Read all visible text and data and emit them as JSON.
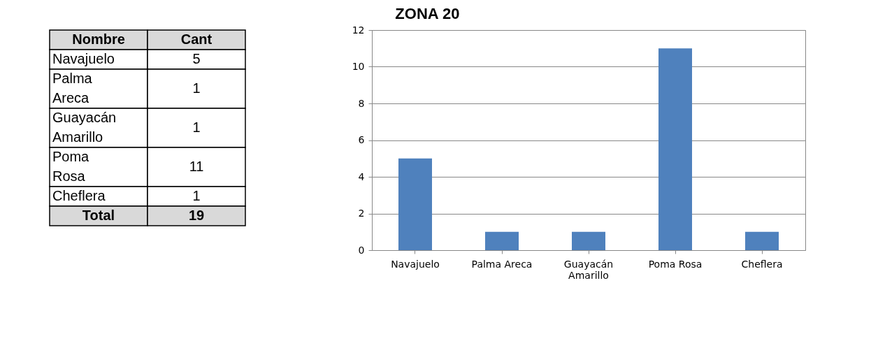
{
  "chart_data": [
    {
      "type": "other",
      "categories": [
        "Navajuelo",
        "Palma Areca",
        "Guayacán Amarillo",
        "Poma Rosa",
        "Cheflera"
      ],
      "values": [
        5,
        1,
        1,
        11,
        1
      ],
      "data_labels": true,
      "annotations": [
        "Nombre",
        "Cant",
        "Total",
        "19"
      ]
    },
    {
      "type": "bar",
      "title": "ZONA 20",
      "categories": [
        "Navajuelo",
        "Palma Areca",
        "Guayacán Amarillo",
        "Poma Rosa",
        "Cheflera"
      ],
      "values": [
        5,
        1,
        1,
        11,
        1
      ],
      "color": "#4f81bd",
      "ylim": [
        0,
        12
      ],
      "yticks": [
        0,
        2,
        4,
        6,
        8,
        10,
        12
      ],
      "grid": "y"
    }
  ]
}
